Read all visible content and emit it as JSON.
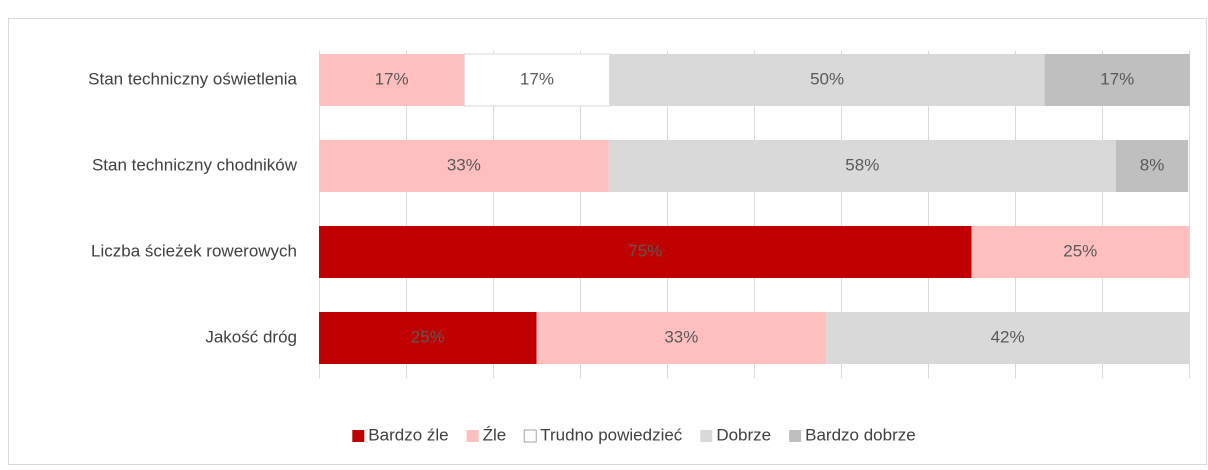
{
  "chart_data": {
    "type": "stacked_barh",
    "categories": [
      "Stan techniczny oświetlenia",
      "Stan techniczny chodników",
      "Liczba ścieżek rowerowych",
      "Jakość dróg"
    ],
    "series": [
      {
        "name": "Bardzo źle",
        "color": "#c00000",
        "values": [
          null,
          null,
          75,
          25
        ],
        "value_labels": [
          null,
          null,
          "75%",
          "25%"
        ]
      },
      {
        "name": "Źle",
        "color": "#ffbfbf",
        "values": [
          16.7,
          33.3,
          25,
          33.3
        ],
        "value_labels": [
          "17%",
          "33%",
          "25%",
          "33%"
        ]
      },
      {
        "name": "Trudno powiedzieć",
        "color": "#ffffff",
        "values": [
          16.7,
          null,
          null,
          null
        ],
        "value_labels": [
          "17%",
          null,
          null,
          null
        ]
      },
      {
        "name": "Dobrze",
        "color": "#d9d9d9",
        "values": [
          50,
          58.3,
          null,
          41.7
        ],
        "value_labels": [
          "50%",
          "58%",
          null,
          "42%"
        ]
      },
      {
        "name": "Bardzo dobrze",
        "color": "#bfbfbf",
        "values": [
          16.7,
          8.3,
          null,
          null
        ],
        "value_labels": [
          "17%",
          "8%",
          null,
          null
        ]
      }
    ],
    "xlim": [
      0,
      100
    ],
    "xticks": [
      0,
      10,
      20,
      30,
      40,
      50,
      60,
      70,
      80,
      90,
      100
    ],
    "grid": true,
    "legend": "bottom"
  }
}
